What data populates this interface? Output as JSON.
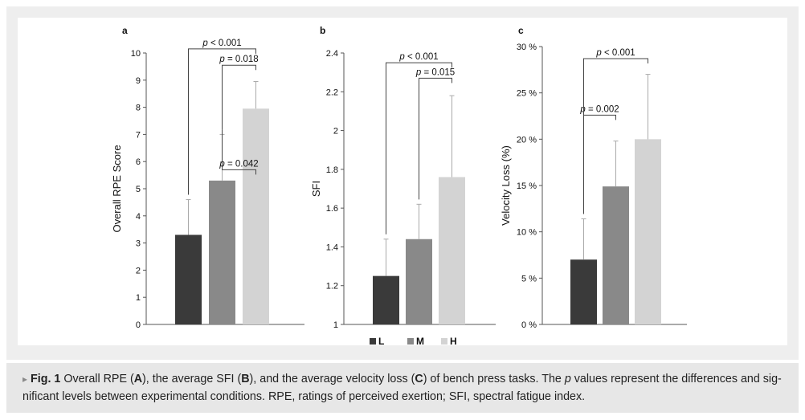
{
  "chart_data": [
    {
      "type": "bar",
      "panel_label": "a",
      "ylabel": "Overall RPE Score",
      "ylim": [
        0,
        10
      ],
      "yticks": [
        "0",
        "1",
        "2",
        "3",
        "4",
        "5",
        "6",
        "7",
        "8",
        "9",
        "10"
      ],
      "ytick_values": [
        0,
        1,
        2,
        3,
        4,
        5,
        6,
        7,
        8,
        9,
        10
      ],
      "categories": [
        "L",
        "M",
        "H"
      ],
      "values": [
        3.3,
        5.3,
        7.95
      ],
      "errors": [
        1.3,
        1.7,
        1.0
      ],
      "comparisons": [
        {
          "from": 1,
          "to": 2,
          "label_p": "p",
          "label_rest": " = 0.042",
          "level": 5.7
        },
        {
          "from": 0,
          "to": 2,
          "label_p": "p",
          "label_rest": " < 0.001",
          "level": 10.15
        },
        {
          "from": 1,
          "to": 2,
          "label_p": "p",
          "label_rest": " = 0.018",
          "level": 9.55
        }
      ]
    },
    {
      "type": "bar",
      "panel_label": "b",
      "ylabel": "SFI",
      "ylim": [
        1,
        2.4
      ],
      "yticks": [
        "1",
        "1.2",
        "1.4",
        "1.6",
        "1.8",
        "2",
        "2.2",
        "2.4"
      ],
      "ytick_values": [
        1,
        1.2,
        1.4,
        1.6,
        1.8,
        2,
        2.2,
        2.4
      ],
      "categories": [
        "L",
        "M",
        "H"
      ],
      "values": [
        1.25,
        1.44,
        1.76
      ],
      "errors": [
        0.19,
        0.18,
        0.42
      ],
      "comparisons": [
        {
          "from": 0,
          "to": 2,
          "label_p": "p",
          "label_rest": " < 0.001",
          "level": 2.35
        },
        {
          "from": 1,
          "to": 2,
          "label_p": "p",
          "label_rest": " = 0.015",
          "level": 2.27
        }
      ]
    },
    {
      "type": "bar",
      "panel_label": "c",
      "ylabel": "Velocity Loss (%)",
      "ylim": [
        0,
        30
      ],
      "yticks": [
        "0 %",
        "5 %",
        "10 %",
        "15 %",
        "20 %",
        "25 %",
        "30 %"
      ],
      "ytick_values": [
        0,
        5,
        10,
        15,
        20,
        25,
        30
      ],
      "categories": [
        "L",
        "M",
        "H"
      ],
      "values": [
        7.0,
        14.9,
        20.0
      ],
      "errors": [
        4.4,
        4.9,
        7.0
      ],
      "comparisons": [
        {
          "from": 0,
          "to": 1,
          "label_p": "p",
          "label_rest": " = 0.002",
          "level": 22.6
        },
        {
          "from": 0,
          "to": 2,
          "label_p": "p",
          "label_rest": " < 0.001",
          "level": 28.7
        }
      ]
    }
  ],
  "legend": [
    {
      "label": "L",
      "color": "#3a3a3a"
    },
    {
      "label": "M",
      "color": "#898989"
    },
    {
      "label": "H",
      "color": "#d3d3d3"
    }
  ],
  "bar_colors": [
    "#3a3a3a",
    "#898989",
    "#d3d3d3"
  ],
  "axis_color": "#555555",
  "error_color": "#aaaaaa",
  "caption": {
    "marker": "▸",
    "fig_label": "Fig. 1",
    "t1": "  Overall RPE (",
    "b1": "A",
    "t2": "), the average SFI (",
    "b2": "B",
    "t3": "), and the average velocity loss (",
    "b3": "C",
    "t4": ") of bench press tasks. The ",
    "i1": "p",
    "t5": " values represent the differences and sig-nificant levels between experimental conditions. RPE, ratings of perceived exertion; SFI, spectral fatigue index."
  }
}
